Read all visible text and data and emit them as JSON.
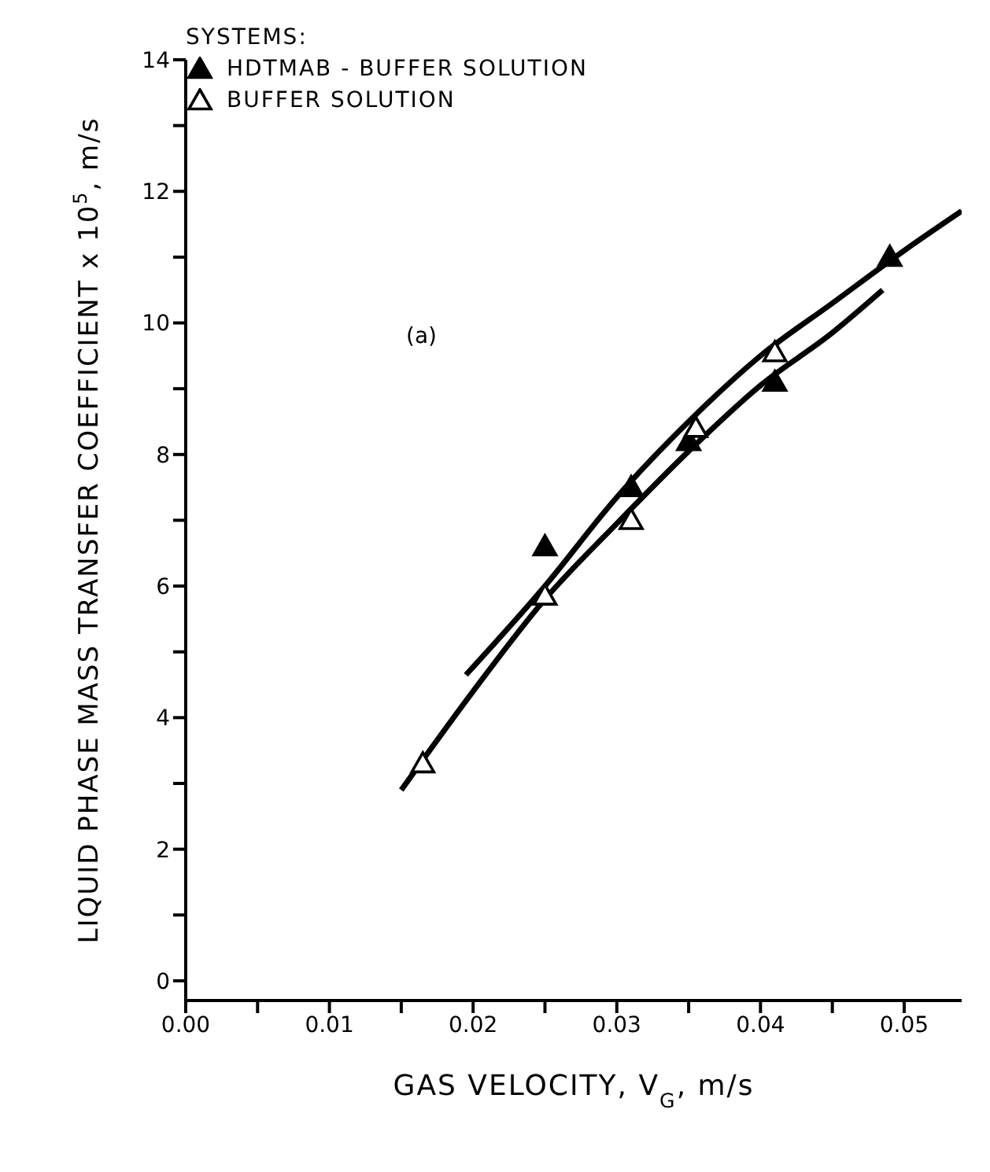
{
  "chart_data": {
    "type": "scatter",
    "xlabel": "GAS VELOCITY, V$_{G}$, m/s",
    "ylabel": "LIQUID PHASE MASS TRANSFER COEFFICIENT x 10$^{5}$, m/s",
    "legend_title": "SYSTEMS:",
    "legend": "top left",
    "marker": "triangle",
    "annotations": [
      "(a)"
    ],
    "xlim": [
      0,
      0.054
    ],
    "xticks": [
      {
        "value": 0,
        "label": "0.00"
      },
      {
        "value": 0.005,
        "label": null
      },
      {
        "value": 0.01,
        "label": "0.01"
      },
      {
        "value": 0.015,
        "label": null
      },
      {
        "value": 0.02,
        "label": "0.02"
      },
      {
        "value": 0.025,
        "label": null
      },
      {
        "value": 0.03,
        "label": "0.03"
      },
      {
        "value": 0.035,
        "label": null
      },
      {
        "value": 0.04,
        "label": "0.04"
      },
      {
        "value": 0.045,
        "label": null
      },
      {
        "value": 0.05,
        "label": "0.05"
      }
    ],
    "ylim": [
      -0.3,
      14
    ],
    "yticks": [
      0,
      {
        "value": 1,
        "label": null
      },
      2,
      {
        "value": 3,
        "label": null
      },
      4,
      {
        "value": 5,
        "label": null
      },
      6,
      {
        "value": 7,
        "label": null
      },
      8,
      {
        "value": 9,
        "label": null
      },
      10,
      {
        "value": 11,
        "label": null
      },
      12,
      {
        "value": 13,
        "label": null
      },
      14
    ],
    "series": [
      {
        "name": "HDTMAB - BUFFER SOLUTION",
        "color": "#000000",
        "x": [
          0.025,
          0.031,
          0.035,
          0.041,
          0.049
        ],
        "values": [
          6.6,
          7.5,
          8.2,
          9.1,
          11.0
        ]
      },
      {
        "name": "BUFFER SOLUTION",
        "color": "#000000",
        "x": [
          0.0165,
          0.025,
          0.031,
          0.0355,
          0.041
        ],
        "values": [
          3.3,
          5.85,
          7.0,
          8.4,
          9.55
        ]
      },
      {
        "type": "line",
        "color": "#000000",
        "marker": "none",
        "x": [
          0.0195,
          0.025,
          0.03,
          0.035,
          0.04,
          0.045,
          0.05,
          0.054
        ],
        "values": [
          4.65,
          6.0,
          7.35,
          8.5,
          9.5,
          10.3,
          11.1,
          11.7
        ]
      },
      {
        "type": "line",
        "color": "#000000",
        "marker": "none",
        "x": [
          0.015,
          0.02,
          0.025,
          0.03,
          0.035,
          0.04,
          0.045,
          0.0485
        ],
        "values": [
          2.9,
          4.4,
          5.8,
          6.95,
          8.05,
          9.05,
          9.85,
          10.5
        ]
      }
    ]
  }
}
